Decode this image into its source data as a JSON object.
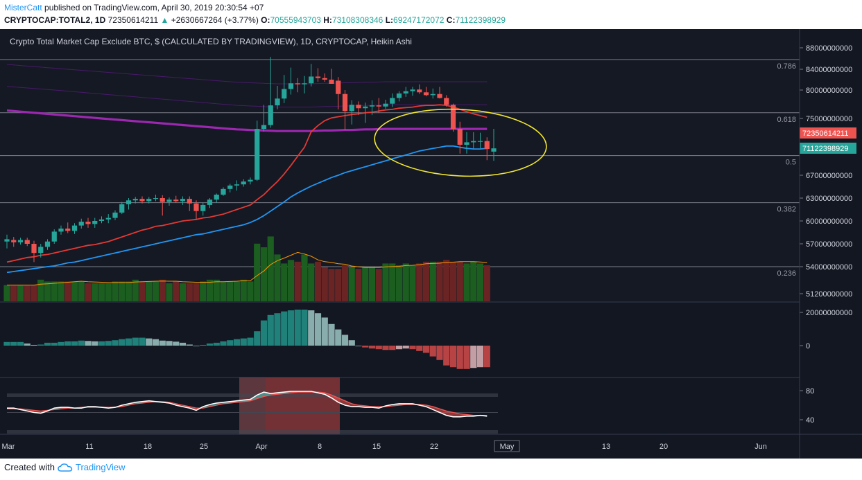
{
  "header": {
    "author": "MisterCatt",
    "published_text": "published on TradingView.com, April 30, 2019 20:30:54 +07",
    "symbol": "CRYPTOCAP:TOTAL2, 1D",
    "price": "72350614211",
    "change": "+2630667264 (+3.77%)",
    "o_label": "O:",
    "o_value": "70555943703",
    "h_label": "H:",
    "h_value": "73108308346",
    "l_label": "L:",
    "l_value": "69247172072",
    "c_label": "C:",
    "c_value": "71122398929"
  },
  "chart_data": {
    "type": "candlestick",
    "title": "Crypto Total Market Cap Exclude BTC, $ (CALCULATED BY TRADINGVIEW), 1D, CRYPTOCAP, Heikin Ashi",
    "x_ticks": [
      "Mar",
      "11",
      "18",
      "25",
      "Apr",
      "8",
      "15",
      "22",
      "May",
      "13",
      "20",
      "Jun"
    ],
    "y_ticks": [
      "88000000000",
      "84000000000",
      "80000000000",
      "75000000000",
      "67000000000",
      "63000000000",
      "60000000000",
      "57000000000",
      "54000000000",
      "51200000000"
    ],
    "fib_levels": [
      {
        "label": "0.786",
        "value": 85800000000
      },
      {
        "label": "0.618",
        "value": 76000000000
      },
      {
        "label": "0.5",
        "value": 70000000000
      },
      {
        "label": "0.382",
        "value": 62400000000
      },
      {
        "label": "0.236",
        "value": 54000000000
      }
    ],
    "price_tags": [
      {
        "text": "72350614211",
        "color": "#ef5350",
        "value": 72350614211
      },
      {
        "text": "71122398929",
        "color": "#26a69a",
        "value": 71122398929
      }
    ],
    "candles": [
      {
        "o": 57.3,
        "h": 58.2,
        "l": 56.4,
        "c": 57.6
      },
      {
        "o": 57.5,
        "h": 57.9,
        "l": 56.6,
        "c": 57.2
      },
      {
        "o": 57.2,
        "h": 57.8,
        "l": 56.9,
        "c": 57.5
      },
      {
        "o": 57.5,
        "h": 57.8,
        "l": 56.7,
        "c": 57.0
      },
      {
        "o": 57.0,
        "h": 57.4,
        "l": 54.6,
        "c": 55.8
      },
      {
        "o": 55.8,
        "h": 57.0,
        "l": 55.2,
        "c": 56.6
      },
      {
        "o": 56.6,
        "h": 57.6,
        "l": 56.2,
        "c": 57.3
      },
      {
        "o": 57.3,
        "h": 58.9,
        "l": 57.0,
        "c": 58.6
      },
      {
        "o": 58.6,
        "h": 59.4,
        "l": 58.2,
        "c": 59.0
      },
      {
        "o": 59.0,
        "h": 59.8,
        "l": 58.4,
        "c": 58.7
      },
      {
        "o": 58.7,
        "h": 59.7,
        "l": 58.3,
        "c": 59.4
      },
      {
        "o": 59.4,
        "h": 60.3,
        "l": 59.0,
        "c": 59.9
      },
      {
        "o": 59.9,
        "h": 60.4,
        "l": 59.1,
        "c": 59.6
      },
      {
        "o": 59.6,
        "h": 60.4,
        "l": 59.1,
        "c": 60.0
      },
      {
        "o": 60.0,
        "h": 60.6,
        "l": 59.7,
        "c": 60.2
      },
      {
        "o": 60.2,
        "h": 60.9,
        "l": 59.7,
        "c": 60.4
      },
      {
        "o": 60.4,
        "h": 61.4,
        "l": 60.1,
        "c": 61.1
      },
      {
        "o": 61.1,
        "h": 62.5,
        "l": 60.9,
        "c": 62.2
      },
      {
        "o": 62.2,
        "h": 63.0,
        "l": 61.5,
        "c": 62.7
      },
      {
        "o": 62.7,
        "h": 63.2,
        "l": 62.3,
        "c": 62.9
      },
      {
        "o": 62.9,
        "h": 63.3,
        "l": 62.3,
        "c": 62.6
      },
      {
        "o": 62.6,
        "h": 63.2,
        "l": 62.3,
        "c": 62.9
      },
      {
        "o": 62.9,
        "h": 63.6,
        "l": 62.6,
        "c": 63.0
      },
      {
        "o": 63.0,
        "h": 63.5,
        "l": 60.7,
        "c": 62.5
      },
      {
        "o": 62.5,
        "h": 63.1,
        "l": 62.0,
        "c": 62.8
      },
      {
        "o": 62.8,
        "h": 63.4,
        "l": 62.4,
        "c": 62.6
      },
      {
        "o": 62.6,
        "h": 63.3,
        "l": 62.1,
        "c": 62.9
      },
      {
        "o": 62.9,
        "h": 63.3,
        "l": 61.3,
        "c": 62.3
      },
      {
        "o": 62.3,
        "h": 62.7,
        "l": 60.2,
        "c": 61.3
      },
      {
        "o": 61.3,
        "h": 62.4,
        "l": 60.7,
        "c": 62.1
      },
      {
        "o": 62.1,
        "h": 63.0,
        "l": 61.7,
        "c": 62.8
      },
      {
        "o": 62.8,
        "h": 63.8,
        "l": 62.4,
        "c": 63.6
      },
      {
        "o": 63.6,
        "h": 64.9,
        "l": 63.4,
        "c": 64.6
      },
      {
        "o": 64.6,
        "h": 65.5,
        "l": 64.0,
        "c": 65.2
      },
      {
        "o": 65.2,
        "h": 66.1,
        "l": 64.3,
        "c": 65.4
      },
      {
        "o": 65.4,
        "h": 66.3,
        "l": 65.0,
        "c": 65.9
      },
      {
        "o": 65.9,
        "h": 66.6,
        "l": 65.4,
        "c": 66.2
      },
      {
        "o": 66.2,
        "h": 74.6,
        "l": 66.0,
        "c": 73.1
      },
      {
        "o": 73.1,
        "h": 77.4,
        "l": 72.6,
        "c": 73.8
      },
      {
        "o": 73.8,
        "h": 86.3,
        "l": 73.3,
        "c": 77.3
      },
      {
        "o": 77.3,
        "h": 80.8,
        "l": 76.6,
        "c": 78.5
      },
      {
        "o": 78.5,
        "h": 82.9,
        "l": 77.7,
        "c": 80.2
      },
      {
        "o": 80.2,
        "h": 84.3,
        "l": 79.2,
        "c": 81.3
      },
      {
        "o": 81.3,
        "h": 82.3,
        "l": 79.6,
        "c": 81.1
      },
      {
        "o": 81.1,
        "h": 82.7,
        "l": 79.4,
        "c": 81.3
      },
      {
        "o": 81.3,
        "h": 85.0,
        "l": 80.7,
        "c": 82.6
      },
      {
        "o": 82.6,
        "h": 84.2,
        "l": 81.6,
        "c": 82.3
      },
      {
        "o": 82.3,
        "h": 83.2,
        "l": 81.6,
        "c": 82.0
      },
      {
        "o": 82.0,
        "h": 84.1,
        "l": 81.3,
        "c": 81.2
      },
      {
        "o": 81.8,
        "h": 82.5,
        "l": 76.6,
        "c": 79.3
      },
      {
        "o": 79.3,
        "h": 80.0,
        "l": 72.9,
        "c": 76.3
      },
      {
        "o": 76.3,
        "h": 78.2,
        "l": 73.9,
        "c": 77.4
      },
      {
        "o": 77.4,
        "h": 78.0,
        "l": 75.6,
        "c": 76.8
      },
      {
        "o": 76.8,
        "h": 77.8,
        "l": 74.2,
        "c": 77.1
      },
      {
        "o": 77.1,
        "h": 78.2,
        "l": 75.6,
        "c": 77.3
      },
      {
        "o": 77.3,
        "h": 78.6,
        "l": 76.0,
        "c": 77.1
      },
      {
        "o": 77.1,
        "h": 78.3,
        "l": 76.7,
        "c": 77.6
      },
      {
        "o": 77.6,
        "h": 79.4,
        "l": 77.0,
        "c": 78.6
      },
      {
        "o": 78.6,
        "h": 79.8,
        "l": 78.0,
        "c": 79.4
      },
      {
        "o": 79.4,
        "h": 80.6,
        "l": 78.8,
        "c": 79.8
      },
      {
        "o": 79.8,
        "h": 80.6,
        "l": 79.0,
        "c": 80.1
      },
      {
        "o": 80.1,
        "h": 81.1,
        "l": 79.3,
        "c": 79.6
      },
      {
        "o": 79.6,
        "h": 80.6,
        "l": 78.9,
        "c": 79.1
      },
      {
        "o": 79.1,
        "h": 80.3,
        "l": 78.5,
        "c": 79.3
      },
      {
        "o": 79.3,
        "h": 80.6,
        "l": 78.5,
        "c": 78.6
      },
      {
        "o": 78.6,
        "h": 79.1,
        "l": 77.1,
        "c": 77.4
      },
      {
        "o": 77.4,
        "h": 77.6,
        "l": 72.6,
        "c": 73.1
      },
      {
        "o": 73.1,
        "h": 74.4,
        "l": 70.3,
        "c": 71.4
      },
      {
        "o": 71.4,
        "h": 72.5,
        "l": 70.3,
        "c": 71.6
      },
      {
        "o": 71.6,
        "h": 72.5,
        "l": 71.0,
        "c": 71.7
      },
      {
        "o": 71.7,
        "h": 72.4,
        "l": 71.1,
        "c": 71.7
      },
      {
        "o": 71.7,
        "h": 72.0,
        "l": 69.3,
        "c": 71.0
      },
      {
        "o": 70.6,
        "h": 73.1,
        "l": 69.2,
        "c": 71.1
      }
    ],
    "ma_red": [
      54.6,
      54.8,
      55.0,
      55.2,
      55.3,
      55.5,
      55.6,
      55.8,
      56.0,
      56.2,
      56.4,
      56.6,
      56.8,
      56.9,
      57.1,
      57.3,
      57.6,
      57.9,
      58.2,
      58.5,
      58.8,
      59.0,
      59.3,
      59.4,
      59.6,
      59.8,
      60.0,
      60.1,
      60.2,
      60.4,
      60.5,
      60.7,
      60.9,
      61.2,
      61.5,
      61.8,
      62.1,
      62.8,
      63.6,
      64.8,
      65.9,
      67.2,
      68.5,
      69.9,
      71.2,
      72.6,
      73.7,
      74.6,
      75.1,
      75.3,
      75.5,
      75.7,
      75.8,
      76.0,
      76.1,
      76.3,
      76.5,
      76.6,
      76.8,
      76.9,
      77.0,
      77.2,
      77.3,
      77.3,
      77.4,
      77.3,
      77.0,
      76.6,
      76.2,
      75.8,
      75.5,
      75.2
    ],
    "ma_blue": [
      53.4,
      53.5,
      53.6,
      53.7,
      53.8,
      53.9,
      54.0,
      54.1,
      54.3,
      54.5,
      54.6,
      54.8,
      55.0,
      55.2,
      55.4,
      55.6,
      55.8,
      56.0,
      56.2,
      56.4,
      56.6,
      56.8,
      57.0,
      57.2,
      57.4,
      57.6,
      57.8,
      58.0,
      58.2,
      58.3,
      58.5,
      58.7,
      58.9,
      59.1,
      59.3,
      59.5,
      59.8,
      60.2,
      60.7,
      61.3,
      61.9,
      62.5,
      63.2,
      63.9,
      64.5,
      65.1,
      65.6,
      66.1,
      66.6,
      67.0,
      67.4,
      67.7,
      68.0,
      68.3,
      68.6,
      68.9,
      69.2,
      69.5,
      69.8,
      70.1,
      70.4,
      70.7,
      70.9,
      71.1,
      71.2,
      71.3,
      71.3,
      71.2,
      71.1,
      71.0,
      71.0,
      71.1
    ],
    "ma_purple": [
      76.4,
      76.3,
      76.2,
      76.1,
      76.0,
      75.9,
      75.8,
      75.7,
      75.6,
      75.5,
      75.4,
      75.3,
      75.2,
      75.1,
      75.0,
      74.9,
      74.8,
      74.7,
      74.6,
      74.5,
      74.4,
      74.3,
      74.2,
      74.1,
      74.0,
      73.9,
      73.8,
      73.7,
      73.6,
      73.5,
      73.4,
      73.3,
      73.2,
      73.1,
      73.0,
      72.95,
      72.9,
      72.85,
      72.8,
      72.75,
      72.7,
      72.7,
      72.7,
      72.7,
      72.7,
      72.7,
      72.75,
      72.8,
      72.8,
      72.85,
      72.9,
      72.9,
      72.95,
      73.0,
      73.0,
      73.05,
      73.1,
      73.1,
      73.1,
      73.1,
      73.1,
      73.1,
      73.1,
      73.1,
      73.1,
      73.1,
      73.1,
      73.1,
      73.1,
      73.1,
      73.1,
      73.1
    ],
    "volume": [
      0.45,
      0.45,
      0.45,
      0.45,
      0.45,
      0.6,
      0.55,
      0.55,
      0.55,
      0.55,
      0.55,
      0.55,
      0.5,
      0.5,
      0.5,
      0.5,
      0.55,
      0.55,
      0.55,
      0.6,
      0.55,
      0.55,
      0.55,
      0.6,
      0.5,
      0.55,
      0.5,
      0.5,
      0.5,
      0.55,
      0.6,
      0.6,
      0.55,
      0.55,
      0.55,
      0.6,
      0.55,
      1.6,
      1.5,
      1.8,
      1.3,
      1.05,
      1.15,
      1.1,
      1.3,
      1.05,
      1.1,
      0.95,
      0.9,
      0.9,
      1.0,
      0.95,
      0.9,
      0.95,
      0.95,
      0.9,
      1.05,
      1.05,
      1.0,
      1.05,
      1.0,
      1.05,
      1.1,
      1.1,
      1.1,
      1.15,
      1.1,
      1.1,
      1.05,
      1.1,
      1.05,
      1.0
    ],
    "macd": [
      0.1,
      0.1,
      0.1,
      0.06,
      0.02,
      0.03,
      0.08,
      0.08,
      0.1,
      0.12,
      0.12,
      0.14,
      0.13,
      0.12,
      0.12,
      0.13,
      0.15,
      0.18,
      0.2,
      0.22,
      0.22,
      0.2,
      0.18,
      0.14,
      0.13,
      0.11,
      0.08,
      0.03,
      0.0,
      0.02,
      0.06,
      0.08,
      0.12,
      0.15,
      0.18,
      0.2,
      0.22,
      0.4,
      0.7,
      0.85,
      0.9,
      0.95,
      0.98,
      1.0,
      1.0,
      0.98,
      0.9,
      0.78,
      0.6,
      0.45,
      0.3,
      0.15,
      0.0,
      -0.05,
      -0.08,
      -0.1,
      -0.12,
      -0.12,
      -0.1,
      -0.08,
      -0.1,
      -0.15,
      -0.2,
      -0.3,
      -0.4,
      -0.55,
      -0.6,
      -0.65,
      -0.65,
      -0.62,
      -0.6,
      -0.6
    ],
    "osc_y_ticks": [
      "20000000000",
      "0"
    ],
    "rsi_y_ticks": [
      "80",
      "40"
    ],
    "rsi_k": [
      56,
      56,
      54,
      52,
      50,
      49,
      52,
      56,
      57,
      57,
      56,
      56,
      58,
      58,
      57,
      56,
      57,
      60,
      62,
      64,
      65,
      66,
      65,
      64,
      63,
      60,
      58,
      56,
      53,
      58,
      61,
      63,
      64,
      65,
      66,
      67,
      68,
      74,
      78,
      76,
      77,
      78,
      79,
      79,
      79,
      79,
      77,
      75,
      70,
      64,
      60,
      58,
      58,
      57,
      57,
      56,
      59,
      61,
      62,
      62,
      62,
      60,
      58,
      54,
      50,
      46,
      44,
      44,
      45,
      45,
      46,
      45
    ],
    "rsi_d": [
      55,
      55,
      55,
      54,
      53,
      52,
      53,
      54,
      55,
      56,
      56,
      57,
      57,
      57,
      57,
      57,
      57,
      58,
      60,
      62,
      63,
      64,
      65,
      65,
      64,
      62,
      60,
      58,
      56,
      56,
      58,
      60,
      62,
      63,
      64,
      65,
      66,
      69,
      72,
      74,
      75,
      76,
      77,
      78,
      78,
      78,
      78,
      77,
      74,
      70,
      66,
      62,
      60,
      59,
      58,
      58,
      58,
      59,
      60,
      61,
      61,
      61,
      60,
      58,
      55,
      52,
      50,
      48,
      47,
      46,
      46,
      46
    ]
  },
  "footer": {
    "created_with": "Created with",
    "brand": "TradingView"
  }
}
